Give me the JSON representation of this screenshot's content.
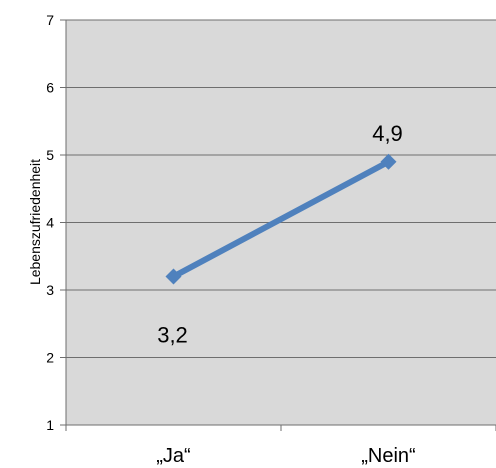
{
  "chart_data": {
    "type": "line",
    "title": "",
    "xlabel": "",
    "ylabel": "Lebenszufriedenheit",
    "categories": [
      "„Ja“",
      "„Nein“"
    ],
    "series": [
      {
        "values": [
          3.2,
          4.9
        ],
        "data_labels": [
          "3,2",
          "4,9"
        ],
        "color": "#4f81bd"
      }
    ],
    "ylim": [
      1,
      7
    ],
    "yticks": [
      1,
      2,
      3,
      4,
      5,
      6,
      7
    ],
    "grid": true,
    "plot_background": "#d9d9d9",
    "marker": "diamond",
    "legend": "none"
  }
}
